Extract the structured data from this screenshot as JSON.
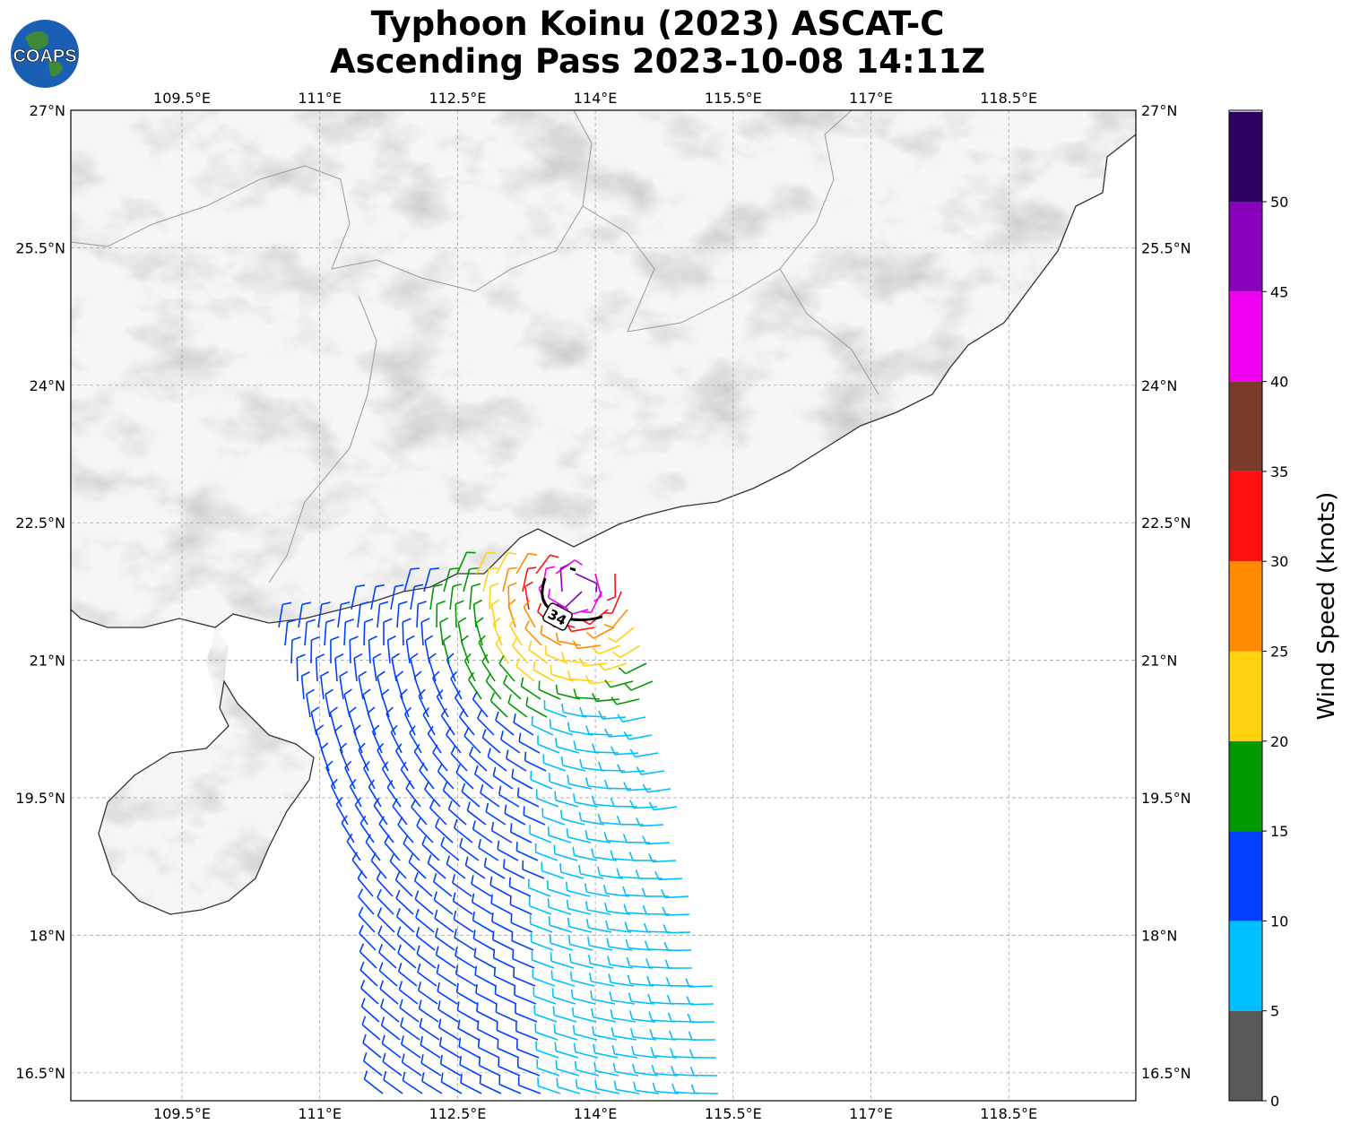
{
  "title": {
    "line1": "Typhoon Koinu (2023) ASCAT-C",
    "line2": "Ascending Pass 2023-10-08 14:11Z"
  },
  "logo": {
    "text": "COAPS",
    "icon": "globe-logo"
  },
  "axes": {
    "lon_ticks": [
      "109.5°E",
      "111°E",
      "112.5°E",
      "114°E",
      "115.5°E",
      "117°E",
      "118.5°E"
    ],
    "lat_ticks": [
      "27°N",
      "25.5°N",
      "24°N",
      "22.5°N",
      "21°N",
      "19.5°N",
      "18°N",
      "16.5°N"
    ]
  },
  "contour_label": "34",
  "colorbar": {
    "label": "Wind Speed (knots)",
    "ticks": [
      "0",
      "5",
      "10",
      "15",
      "20",
      "25",
      "30",
      "35",
      "40",
      "45",
      "50"
    ],
    "colors": [
      "#595959",
      "#00bfff",
      "#0040ff",
      "#009a00",
      "#ffd20f",
      "#ff8c00",
      "#ff1010",
      "#7a3b2a",
      "#f000f0",
      "#8800bb",
      "#2e0062"
    ]
  }
}
